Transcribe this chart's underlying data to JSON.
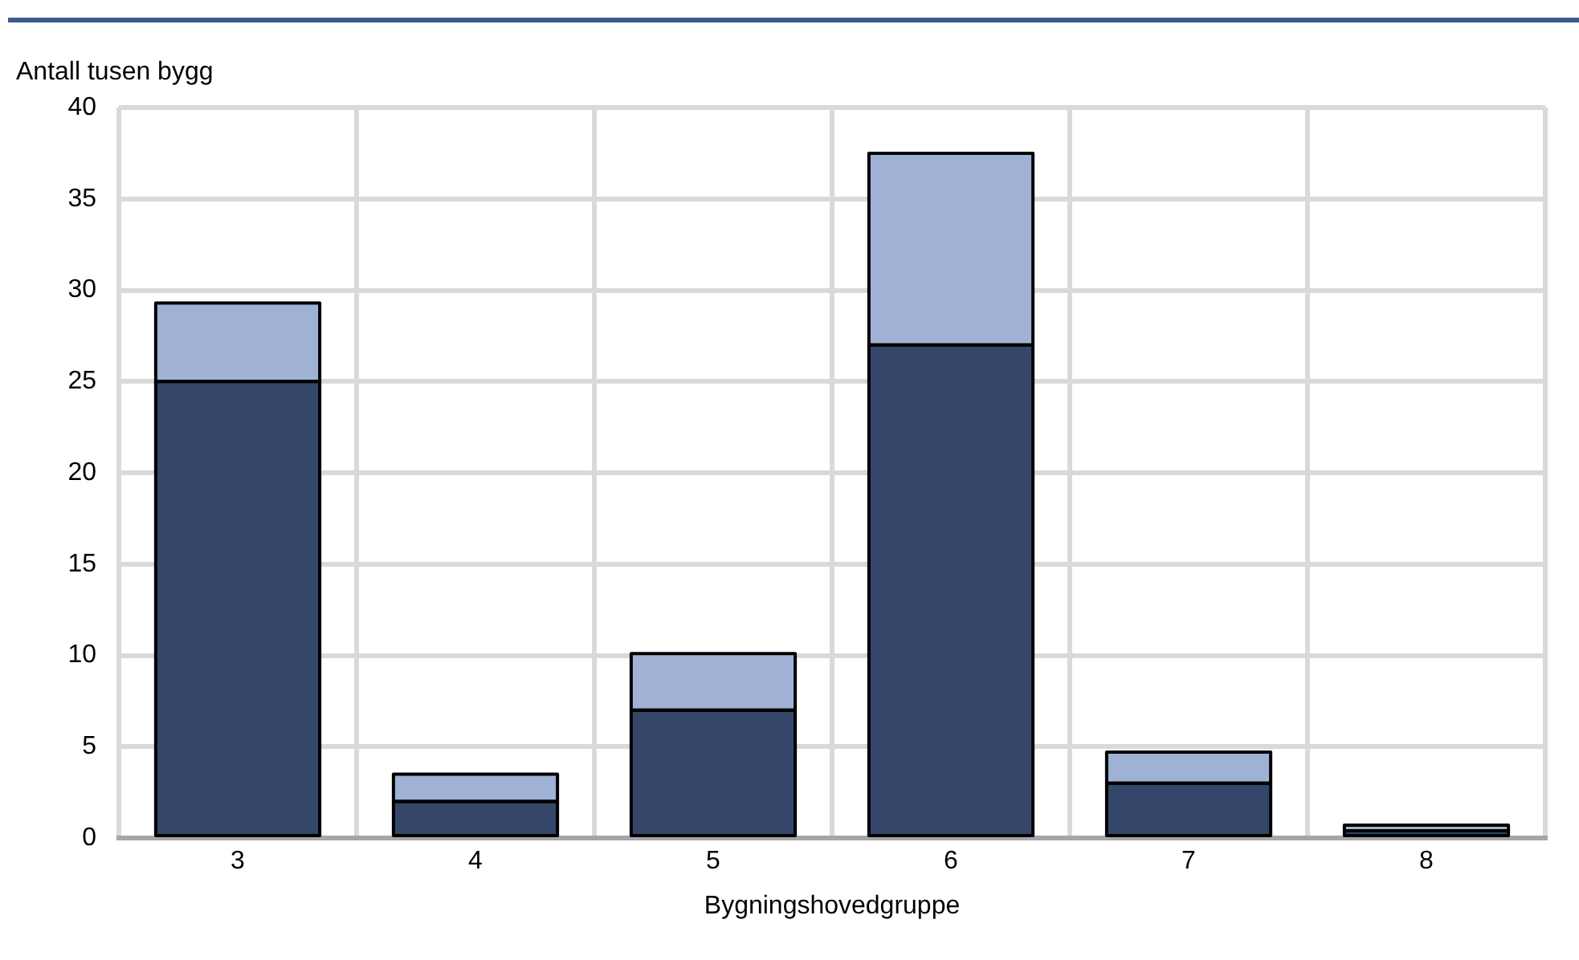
{
  "chart_data": {
    "type": "bar",
    "ylabel": "Antall tusen bygg",
    "xlabel": "Bygningshovedgruppe",
    "categories": [
      "3",
      "4",
      "5",
      "6",
      "7",
      "8"
    ],
    "stacked": true,
    "series": [
      {
        "color": "#34476a",
        "values": [
          25,
          2,
          7,
          27,
          3,
          0.4
        ]
      },
      {
        "color": "#9fb1d4",
        "values": [
          4.3,
          1.5,
          3.1,
          10.5,
          1.7,
          0.3
        ]
      }
    ],
    "ylim": [
      0,
      40
    ],
    "yticks": [
      0,
      5,
      10,
      15,
      20,
      25,
      30,
      35,
      40
    ],
    "grid": true
  }
}
